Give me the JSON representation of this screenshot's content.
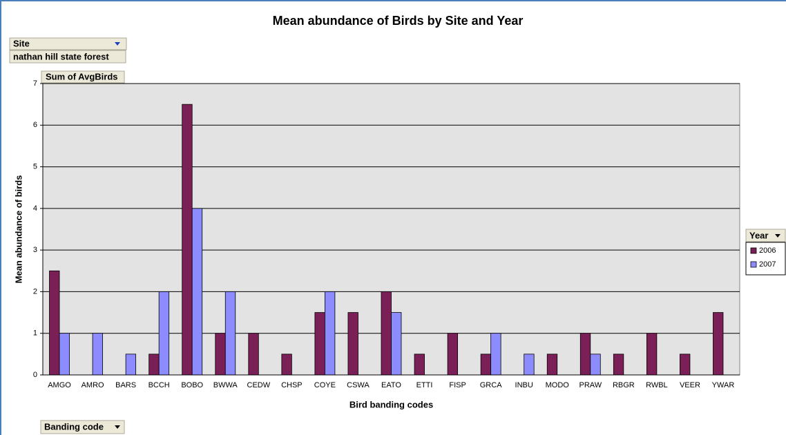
{
  "chart_data": {
    "type": "bar",
    "title": "Mean abundance of Birds by Site and Year",
    "x_label": "Bird banding codes",
    "y_label": "Mean abundance of birds",
    "page_field": {
      "name": "Site",
      "value": "nathan hill state forest"
    },
    "data_field": "Sum of AvgBirds",
    "category_field": "Banding code",
    "legend_title": "Year",
    "categories": [
      "AMGO",
      "AMRO",
      "BARS",
      "BCCH",
      "BOBO",
      "BWWA",
      "CEDW",
      "CHSP",
      "COYE",
      "CSWA",
      "EATO",
      "ETTI",
      "FISP",
      "GRCA",
      "INBU",
      "MODO",
      "PRAW",
      "RBGR",
      "RWBL",
      "VEER",
      "YWAR"
    ],
    "series": [
      {
        "name": "2006",
        "color": "#7b1f57",
        "values": [
          2.5,
          null,
          null,
          0.5,
          6.5,
          1,
          1,
          0.5,
          1.5,
          1.5,
          2,
          0.5,
          1,
          0.5,
          null,
          0.5,
          1,
          0.5,
          1,
          0.5,
          1.5
        ]
      },
      {
        "name": "2007",
        "color": "#8c8cff",
        "values": [
          1,
          1,
          0.5,
          2,
          4,
          2,
          null,
          null,
          2,
          null,
          1.5,
          null,
          null,
          1,
          0.5,
          null,
          0.5,
          null,
          null,
          null,
          null
        ]
      }
    ],
    "ylim": [
      0,
      7
    ],
    "yticks": [
      0,
      1,
      2,
      3,
      4,
      5,
      6,
      7
    ],
    "grid": true
  }
}
